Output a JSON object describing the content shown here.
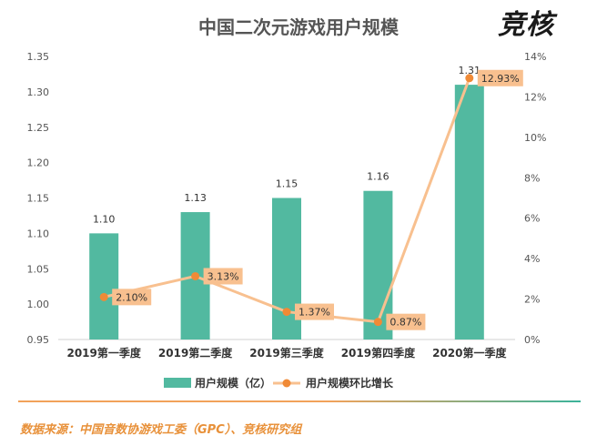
{
  "title": "中国二次元游戏用户规模",
  "logo": "竞核",
  "source": "数据来源：中国音数协游戏工委（GPC）、竞核研究组",
  "chart_data": {
    "type": "bar",
    "title": "中国二次元游戏用户规模",
    "categories": [
      "2019第一季度",
      "2019第二季度",
      "2019第三季度",
      "2019第四季度",
      "2020第一季度"
    ],
    "series": [
      {
        "name": "用户规模（亿）",
        "type": "bar",
        "axis": "left",
        "color": "#52b9a0",
        "values": [
          1.1,
          1.13,
          1.15,
          1.16,
          1.31
        ],
        "labels": [
          "1.10",
          "1.13",
          "1.15",
          "1.16",
          "1.31"
        ]
      },
      {
        "name": "用户规模环比增长",
        "type": "line",
        "axis": "right",
        "color": "#f8c08f",
        "marker_color": "#f08a36",
        "values": [
          2.1,
          3.13,
          1.37,
          0.87,
          12.93
        ],
        "labels": [
          "2.10%",
          "3.13%",
          "1.37%",
          "0.87%",
          "12.93%"
        ]
      }
    ],
    "y_left": {
      "ylim": [
        0.95,
        1.35
      ],
      "ticks": [
        0.95,
        1.0,
        1.05,
        1.1,
        1.15,
        1.2,
        1.25,
        1.3,
        1.35
      ],
      "tick_labels": [
        "0.95",
        "1.00",
        "1.05",
        "1.10",
        "1.15",
        "1.20",
        "1.25",
        "1.30",
        "1.35"
      ]
    },
    "y_right": {
      "ylim": [
        0,
        14
      ],
      "ticks": [
        0,
        2,
        4,
        6,
        8,
        10,
        12,
        14
      ],
      "tick_labels": [
        "0%",
        "2%",
        "4%",
        "6%",
        "8%",
        "10%",
        "12%",
        "14%"
      ]
    },
    "grid": false,
    "legend_position": "bottom"
  }
}
